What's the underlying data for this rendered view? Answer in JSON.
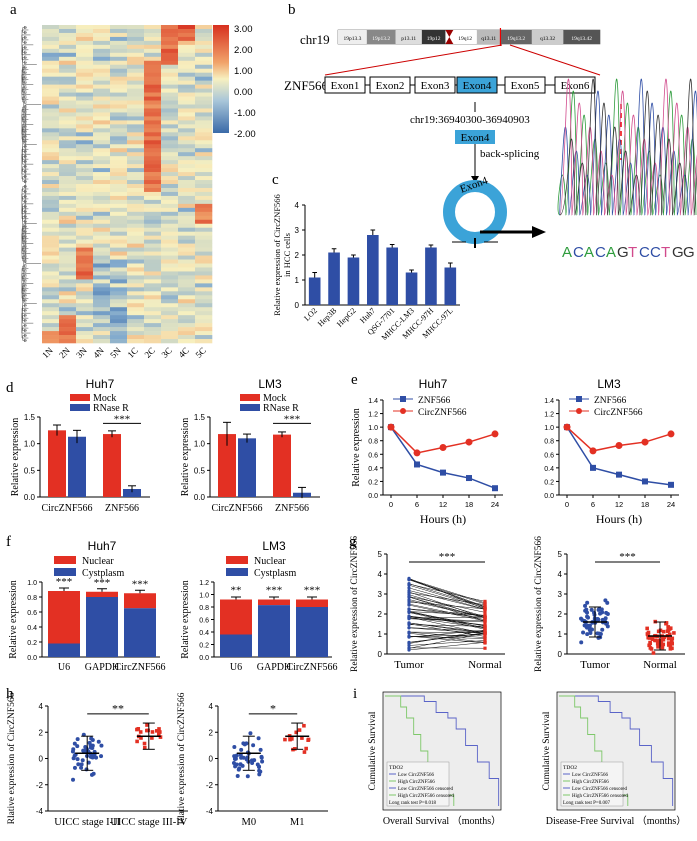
{
  "colors": {
    "red": "#e33023",
    "blue": "#2f4ea5",
    "grey": "#888888"
  },
  "panels": {
    "a": {
      "letter": "a",
      "samples": [
        "1N",
        "2N",
        "3N",
        "4N",
        "5N",
        "1C",
        "2C",
        "3C",
        "4C",
        "5C"
      ],
      "colorbar_ticks": [
        "3.00",
        "2.00",
        "1.00",
        "0.00",
        "-1.00",
        "-2.00"
      ]
    },
    "b": {
      "letter": "b",
      "chrom": "chr19",
      "band_labels": [
        "19p13.3",
        "19p13.2",
        "p13.11",
        "19p12",
        "19q12",
        "q13.11",
        "19q13.2",
        "q13.32",
        "19q13.42"
      ],
      "gene": "ZNF566",
      "exons": [
        "Exon1",
        "Exon2",
        "Exon3",
        "Exon4",
        "Exon5",
        "Exon6"
      ],
      "coords": "chr19:36940300-36940903",
      "exon_box": "Exon4",
      "backsplice": "back-splicing",
      "circle_label": "Exon4",
      "sequence": [
        "A",
        "C",
        "A",
        "C",
        "A",
        "G",
        "T",
        "C",
        "C",
        "T",
        "G",
        "G"
      ],
      "sequence_colors": [
        "#2e9c3c",
        "#2f4ea5",
        "#2e9c3c",
        "#2f4ea5",
        "#2e9c3c",
        "#333333",
        "#d14a8c",
        "#2f4ea5",
        "#2f4ea5",
        "#d14a8c",
        "#333333",
        "#333333"
      ]
    },
    "c": {
      "letter": "c",
      "ylabel": "Relative expression of CircZNF566",
      "ylabel2": "in HCC cells",
      "chart_data": {
        "type": "bar",
        "categories": [
          "LO2",
          "Hep3B",
          "HepG2",
          "Huh7",
          "QSG-7701",
          "MHCC-LM3",
          "MHCC-97H",
          "MHCC-97L"
        ],
        "values": [
          1.1,
          2.1,
          1.9,
          2.8,
          2.3,
          1.3,
          2.3,
          1.5
        ],
        "errors": [
          0.2,
          0.15,
          0.1,
          0.2,
          0.12,
          0.1,
          0.1,
          0.18
        ],
        "ylim": [
          0,
          4
        ],
        "yticks": [
          "0",
          "1",
          "2",
          "3",
          "4"
        ]
      }
    },
    "d": {
      "letter": "d",
      "charts": [
        {
          "title": "Huh7",
          "legend": [
            "Mock",
            "RNase R"
          ],
          "ylabel": "Relative expression",
          "categories": [
            "CircZNF566",
            "ZNF566"
          ],
          "mock": [
            1.25,
            1.18
          ],
          "rnase": [
            1.13,
            0.15
          ],
          "mock_err": [
            0.1,
            0.06
          ],
          "rnase_err": [
            0.12,
            0.06
          ],
          "sig": "***",
          "yticks": [
            "0.0",
            "0.5",
            "1.0",
            "1.5"
          ]
        },
        {
          "title": "LM3",
          "legend": [
            "Mock",
            "RNase R"
          ],
          "ylabel": "Relative expression",
          "categories": [
            "CircZNF566",
            "ZNF566"
          ],
          "mock": [
            1.18,
            1.17
          ],
          "rnase": [
            1.1,
            0.08
          ],
          "mock_err": [
            0.22,
            0.05
          ],
          "rnase_err": [
            0.08,
            0.1
          ],
          "sig": "***",
          "yticks": [
            "0.0",
            "0.5",
            "1.0",
            "1.5"
          ]
        }
      ]
    },
    "e": {
      "letter": "e",
      "charts": [
        {
          "title": "Huh7",
          "legend": [
            "ZNF566",
            "CircZNF566"
          ],
          "xlabel": "Hours (h)",
          "ylabel": "Relative expression",
          "x": [
            "0",
            "6",
            "12",
            "18",
            "24"
          ],
          "znf": [
            1.0,
            0.45,
            0.33,
            0.25,
            0.1
          ],
          "circ": [
            1.0,
            0.62,
            0.7,
            0.78,
            0.9
          ],
          "yticks": [
            "0.0",
            "0.2",
            "0.4",
            "0.6",
            "0.8",
            "1.0",
            "1.2",
            "1.4"
          ]
        },
        {
          "title": "LM3",
          "legend": [
            "ZNF566",
            "CircZNF566"
          ],
          "xlabel": "Hours (h)",
          "ylabel": "",
          "x": [
            "0",
            "6",
            "12",
            "18",
            "24"
          ],
          "znf": [
            1.0,
            0.4,
            0.3,
            0.2,
            0.15
          ],
          "circ": [
            1.0,
            0.65,
            0.73,
            0.78,
            0.9
          ],
          "yticks": [
            "0.0",
            "0.2",
            "0.4",
            "0.6",
            "0.8",
            "1.0",
            "1.2",
            "1.4"
          ]
        }
      ]
    },
    "f": {
      "letter": "f",
      "charts": [
        {
          "title": "Huh7",
          "legend": [
            "Nuclear",
            "Cystplasm"
          ],
          "ylabel": "Relative expression",
          "categories": [
            "U6",
            "GAPDH",
            "CircZNF566"
          ],
          "cyto": [
            0.18,
            0.8,
            0.65
          ],
          "total": [
            0.88,
            0.87,
            0.85
          ],
          "sigs": [
            "***",
            "***",
            "***"
          ],
          "yticks": [
            "0.0",
            "0.2",
            "0.4",
            "0.6",
            "0.8",
            "1.0"
          ]
        },
        {
          "title": "LM3",
          "legend": [
            "Nuclear",
            "Cystplasm"
          ],
          "ylabel": "Relative expression",
          "categories": [
            "U6",
            "GAPDH",
            "CircZNF566"
          ],
          "cyto": [
            0.36,
            0.83,
            0.8
          ],
          "total": [
            0.92,
            0.92,
            0.92
          ],
          "sigs": [
            "**",
            "***",
            "***"
          ],
          "yticks": [
            "0.0",
            "0.2",
            "0.4",
            "0.6",
            "0.8",
            "1.0",
            "1.2"
          ]
        }
      ]
    },
    "g": {
      "letter": "g",
      "ylabel": "Relative expression of CircZNF566",
      "categories": [
        "Tumor",
        "Normal"
      ],
      "sig": "***",
      "yticks": [
        "0",
        "1",
        "2",
        "3",
        "4",
        "5"
      ]
    },
    "h": {
      "letter": "h",
      "ylabel": "Rlative expression of CircZNF566",
      "left": {
        "categories": [
          "UICC stage I-II",
          "UICC stage III-IV"
        ],
        "sig": "**"
      },
      "right": {
        "categories": [
          "M0",
          "M1"
        ],
        "sig": "*"
      },
      "yticks": [
        "-4",
        "-2",
        "0",
        "2",
        "4"
      ]
    },
    "i": {
      "letter": "i",
      "ylabel": "Cumulative Survival",
      "left_title": "Overall Survival （months）",
      "right_title": "Disease-Free Survival （months）",
      "legend_title": "TDO2",
      "legend": [
        "Low CircZNF566",
        "High CircZNF566",
        "Low CircZNF566 censored",
        "High CircZNF566 censored"
      ],
      "left_pval": "Long rank test P=0.018",
      "right_pval": "Long rank test P=0.007"
    }
  }
}
